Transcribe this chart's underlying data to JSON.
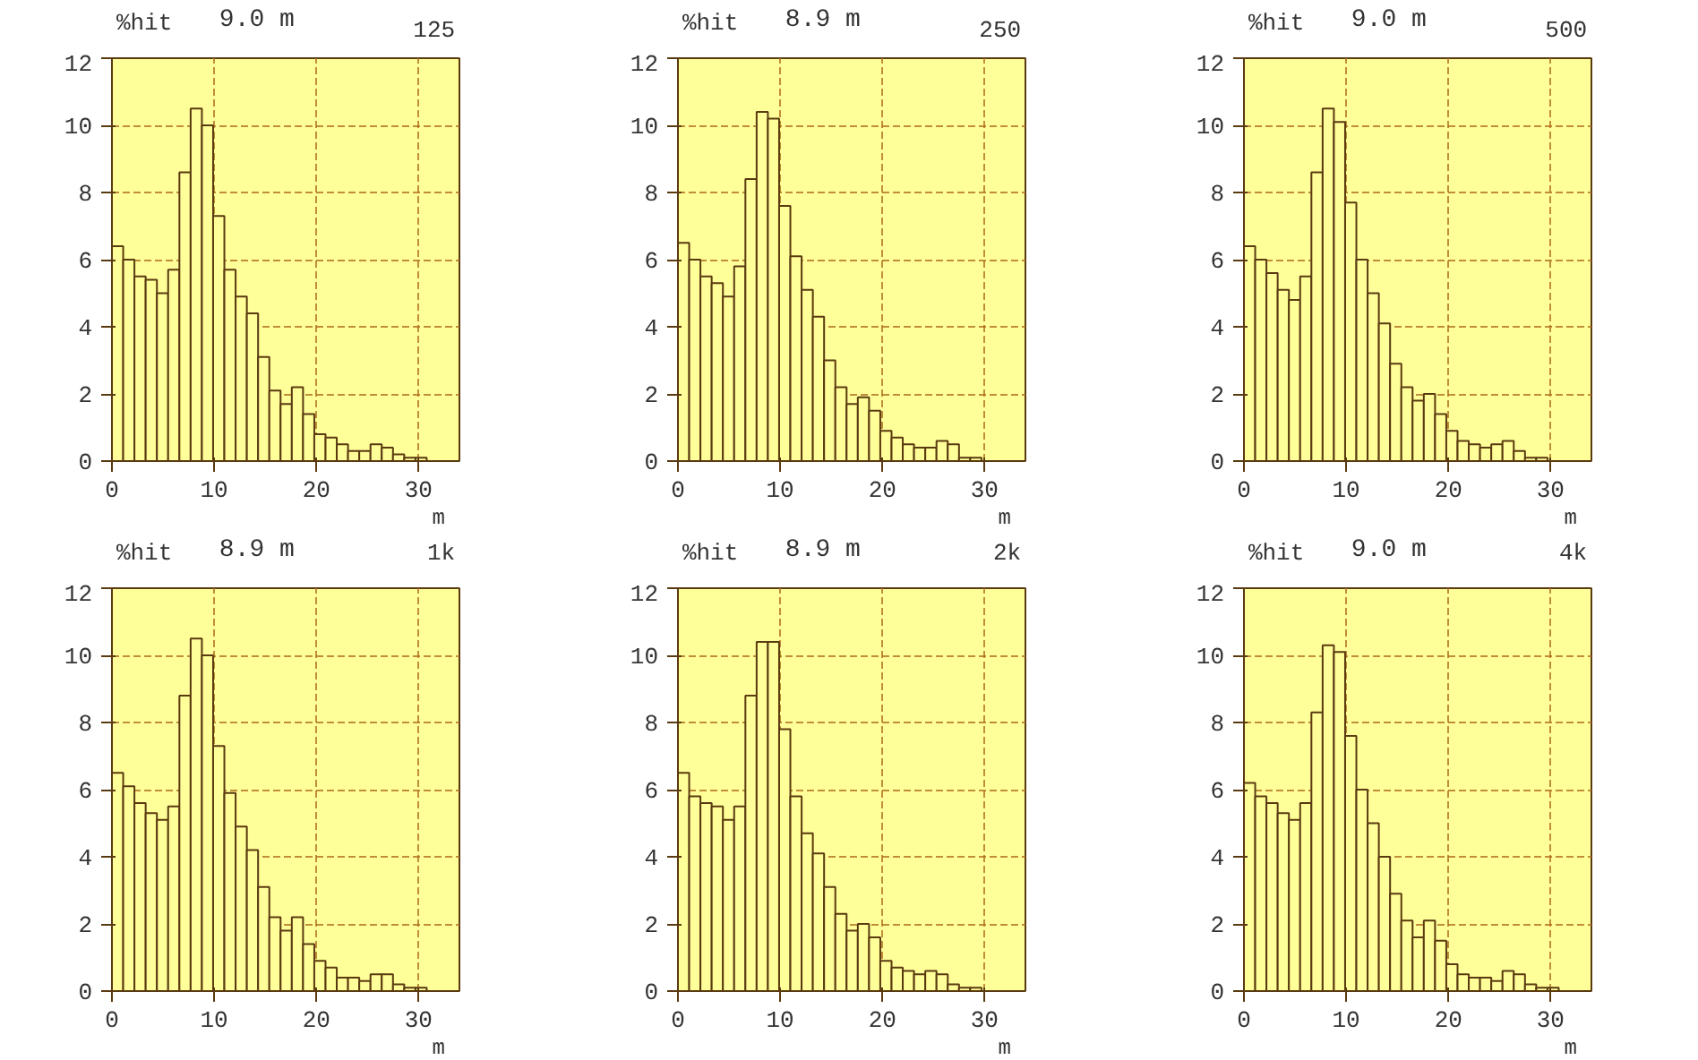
{
  "chart_data": [
    {
      "type": "histogram",
      "subtitle": "125",
      "ylabel": "%hit",
      "xlabel": "m",
      "bins": [
        0,
        1.1,
        2.2,
        3.3,
        4.4,
        5.5,
        6.6,
        7.7,
        8.8,
        9.9,
        11,
        12.1,
        13.2,
        14.3,
        15.4,
        16.5,
        17.6,
        18.7,
        19.8,
        20.9,
        22,
        23.1,
        24.2,
        25.3,
        26.4,
        27.5,
        28.6,
        29.7,
        30.8,
        31.9,
        33
      ],
      "values": [
        6.4,
        6.0,
        5.5,
        5.4,
        5.0,
        5.7,
        8.6,
        10.5,
        10.0,
        7.3,
        5.7,
        4.9,
        4.4,
        3.1,
        2.1,
        1.7,
        2.2,
        1.4,
        0.8,
        0.7,
        0.5,
        0.3,
        0.3,
        0.5,
        0.4,
        0.2,
        0.1,
        0.1,
        0,
        0
      ],
      "color": "#ffff99",
      "xlim": [
        0,
        34
      ],
      "ylim": [
        0,
        12
      ],
      "xticks": [
        0,
        10,
        20,
        30
      ],
      "yticks": [
        0,
        2,
        4,
        6,
        8,
        10,
        12
      ],
      "grid": true,
      "annotations": [
        "9.0 m"
      ]
    },
    {
      "type": "histogram",
      "subtitle": "250",
      "ylabel": "%hit",
      "xlabel": "m",
      "bins": [
        0,
        1.1,
        2.2,
        3.3,
        4.4,
        5.5,
        6.6,
        7.7,
        8.8,
        9.9,
        11,
        12.1,
        13.2,
        14.3,
        15.4,
        16.5,
        17.6,
        18.7,
        19.8,
        20.9,
        22,
        23.1,
        24.2,
        25.3,
        26.4,
        27.5,
        28.6,
        29.7,
        30.8,
        31.9,
        33
      ],
      "values": [
        6.5,
        6.0,
        5.5,
        5.3,
        4.9,
        5.8,
        8.4,
        10.4,
        10.2,
        7.6,
        6.1,
        5.1,
        4.3,
        3.0,
        2.2,
        1.7,
        1.9,
        1.5,
        0.9,
        0.7,
        0.5,
        0.4,
        0.4,
        0.6,
        0.5,
        0.1,
        0.1,
        0,
        0,
        0
      ],
      "color": "#ffff99",
      "xlim": [
        0,
        34
      ],
      "ylim": [
        0,
        12
      ],
      "xticks": [
        0,
        10,
        20,
        30
      ],
      "yticks": [
        0,
        2,
        4,
        6,
        8,
        10,
        12
      ],
      "grid": true,
      "annotations": [
        "8.9 m"
      ]
    },
    {
      "type": "histogram",
      "subtitle": "500",
      "ylabel": "%hit",
      "xlabel": "m",
      "bins": [
        0,
        1.1,
        2.2,
        3.3,
        4.4,
        5.5,
        6.6,
        7.7,
        8.8,
        9.9,
        11,
        12.1,
        13.2,
        14.3,
        15.4,
        16.5,
        17.6,
        18.7,
        19.8,
        20.9,
        22,
        23.1,
        24.2,
        25.3,
        26.4,
        27.5,
        28.6,
        29.7,
        30.8,
        31.9,
        33
      ],
      "values": [
        6.4,
        6.0,
        5.6,
        5.1,
        4.8,
        5.5,
        8.6,
        10.5,
        10.1,
        7.7,
        6.0,
        5.0,
        4.1,
        2.9,
        2.2,
        1.8,
        2.0,
        1.4,
        0.9,
        0.6,
        0.5,
        0.4,
        0.5,
        0.6,
        0.3,
        0.1,
        0.1,
        0,
        0,
        0
      ],
      "color": "#ffff99",
      "xlim": [
        0,
        34
      ],
      "ylim": [
        0,
        12
      ],
      "xticks": [
        0,
        10,
        20,
        30
      ],
      "yticks": [
        0,
        2,
        4,
        6,
        8,
        10,
        12
      ],
      "grid": true,
      "annotations": [
        "9.0 m"
      ]
    },
    {
      "type": "histogram",
      "subtitle": "1k",
      "ylabel": "%hit",
      "xlabel": "m",
      "bins": [
        0,
        1.1,
        2.2,
        3.3,
        4.4,
        5.5,
        6.6,
        7.7,
        8.8,
        9.9,
        11,
        12.1,
        13.2,
        14.3,
        15.4,
        16.5,
        17.6,
        18.7,
        19.8,
        20.9,
        22,
        23.1,
        24.2,
        25.3,
        26.4,
        27.5,
        28.6,
        29.7,
        30.8,
        31.9,
        33
      ],
      "values": [
        6.5,
        6.1,
        5.6,
        5.3,
        5.1,
        5.5,
        8.8,
        10.5,
        10.0,
        7.3,
        5.9,
        4.9,
        4.2,
        3.1,
        2.2,
        1.8,
        2.2,
        1.4,
        0.9,
        0.7,
        0.4,
        0.4,
        0.3,
        0.5,
        0.5,
        0.2,
        0.1,
        0.1,
        0,
        0
      ],
      "color": "#ffff99",
      "xlim": [
        0,
        34
      ],
      "ylim": [
        0,
        12
      ],
      "xticks": [
        0,
        10,
        20,
        30
      ],
      "yticks": [
        0,
        2,
        4,
        6,
        8,
        10,
        12
      ],
      "grid": true,
      "annotations": [
        "8.9 m"
      ]
    },
    {
      "type": "histogram",
      "subtitle": "2k",
      "ylabel": "%hit",
      "xlabel": "m",
      "bins": [
        0,
        1.1,
        2.2,
        3.3,
        4.4,
        5.5,
        6.6,
        7.7,
        8.8,
        9.9,
        11,
        12.1,
        13.2,
        14.3,
        15.4,
        16.5,
        17.6,
        18.7,
        19.8,
        20.9,
        22,
        23.1,
        24.2,
        25.3,
        26.4,
        27.5,
        28.6,
        29.7,
        30.8,
        31.9,
        33
      ],
      "values": [
        6.5,
        5.8,
        5.6,
        5.5,
        5.1,
        5.5,
        8.8,
        10.4,
        10.4,
        7.8,
        5.8,
        4.7,
        4.1,
        3.1,
        2.3,
        1.8,
        2.0,
        1.6,
        0.9,
        0.7,
        0.6,
        0.5,
        0.6,
        0.5,
        0.2,
        0.1,
        0.1,
        0,
        0,
        0
      ],
      "color": "#ffff99",
      "xlim": [
        0,
        34
      ],
      "ylim": [
        0,
        12
      ],
      "xticks": [
        0,
        10,
        20,
        30
      ],
      "yticks": [
        0,
        2,
        4,
        6,
        8,
        10,
        12
      ],
      "grid": true,
      "annotations": [
        "8.9 m"
      ]
    },
    {
      "type": "histogram",
      "subtitle": "4k",
      "ylabel": "%hit",
      "xlabel": "m",
      "bins": [
        0,
        1.1,
        2.2,
        3.3,
        4.4,
        5.5,
        6.6,
        7.7,
        8.8,
        9.9,
        11,
        12.1,
        13.2,
        14.3,
        15.4,
        16.5,
        17.6,
        18.7,
        19.8,
        20.9,
        22,
        23.1,
        24.2,
        25.3,
        26.4,
        27.5,
        28.6,
        29.7,
        30.8,
        31.9,
        33
      ],
      "values": [
        6.2,
        5.8,
        5.6,
        5.3,
        5.1,
        5.6,
        8.3,
        10.3,
        10.1,
        7.6,
        6.0,
        5.0,
        4.0,
        2.9,
        2.1,
        1.6,
        2.1,
        1.5,
        0.8,
        0.5,
        0.4,
        0.4,
        0.3,
        0.6,
        0.5,
        0.2,
        0.1,
        0.1,
        0,
        0
      ],
      "color": "#ffff99",
      "xlim": [
        0,
        34
      ],
      "ylim": [
        0,
        12
      ],
      "xticks": [
        0,
        10,
        20,
        30
      ],
      "yticks": [
        0,
        2,
        4,
        6,
        8,
        10,
        12
      ],
      "grid": true,
      "annotations": [
        "9.0 m"
      ]
    }
  ]
}
